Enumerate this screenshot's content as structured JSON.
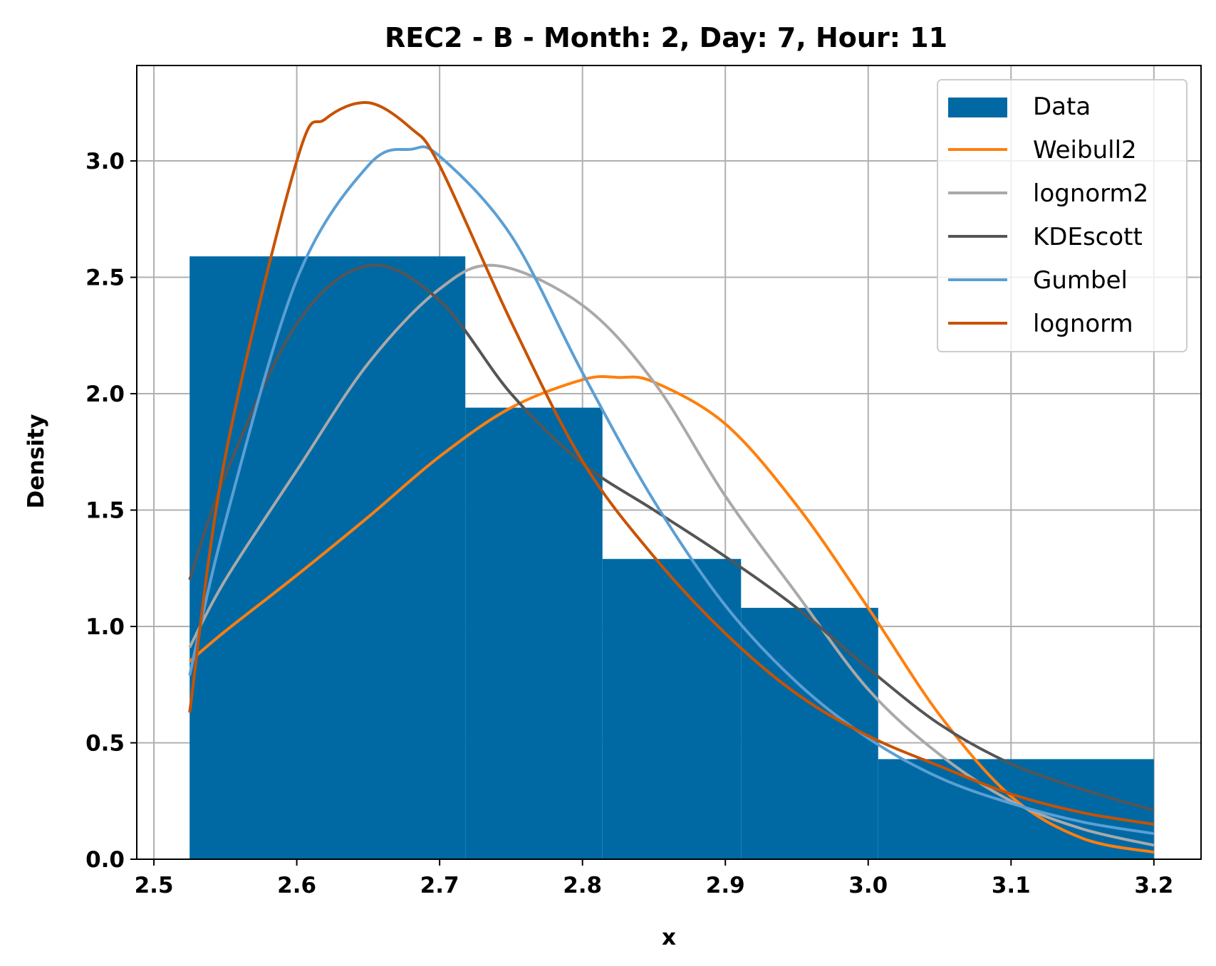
{
  "chart_data": {
    "type": "bar",
    "title": "REC2 - B - Month: 2, Day: 7, Hour: 11",
    "xlabel": "x",
    "ylabel": "Density",
    "xlim": [
      2.488,
      3.233
    ],
    "ylim": [
      0.0,
      3.41
    ],
    "xticks": [
      2.5,
      2.6,
      2.7,
      2.8,
      2.9,
      3.0,
      3.1,
      3.2
    ],
    "xtick_labels": [
      "2.5",
      "2.6",
      "2.7",
      "2.8",
      "2.9",
      "3.0",
      "3.1",
      "3.2"
    ],
    "yticks": [
      0.0,
      0.5,
      1.0,
      1.5,
      2.0,
      2.5,
      3.0
    ],
    "ytick_labels": [
      "0.0",
      "0.5",
      "1.0",
      "1.5",
      "2.0",
      "2.5",
      "3.0"
    ],
    "grid": true,
    "legend_position": "top-right",
    "histogram": {
      "name": "Data",
      "color": "#0069a4",
      "bin_edges": [
        2.525,
        2.718,
        2.814,
        2.911,
        3.007,
        3.2
      ],
      "values": [
        2.59,
        1.94,
        1.29,
        1.08,
        0.43
      ]
    },
    "series": [
      {
        "name": "Weibull2",
        "color": "#ff7f0e",
        "x": [
          2.525,
          2.55,
          2.6,
          2.65,
          2.7,
          2.75,
          2.8,
          2.825,
          2.85,
          2.9,
          2.95,
          3.0,
          3.05,
          3.1,
          3.15,
          3.2
        ],
        "y": [
          0.85,
          0.98,
          1.22,
          1.47,
          1.73,
          1.94,
          2.06,
          2.07,
          2.05,
          1.87,
          1.52,
          1.08,
          0.62,
          0.27,
          0.09,
          0.03
        ]
      },
      {
        "name": "lognorm2",
        "color": "#a9a9a9",
        "x": [
          2.525,
          2.55,
          2.6,
          2.65,
          2.7,
          2.74,
          2.8,
          2.85,
          2.9,
          2.95,
          3.0,
          3.05,
          3.1,
          3.15,
          3.2
        ],
        "y": [
          0.91,
          1.2,
          1.67,
          2.13,
          2.45,
          2.55,
          2.38,
          2.05,
          1.56,
          1.14,
          0.73,
          0.45,
          0.25,
          0.13,
          0.06
        ]
      },
      {
        "name": "KDEscott",
        "color": "#555555",
        "x": [
          2.525,
          2.55,
          2.6,
          2.65,
          2.7,
          2.75,
          2.8,
          2.85,
          2.9,
          2.95,
          3.0,
          3.05,
          3.1,
          3.15,
          3.2
        ],
        "y": [
          1.2,
          1.65,
          2.3,
          2.55,
          2.4,
          2.0,
          1.7,
          1.5,
          1.3,
          1.08,
          0.82,
          0.58,
          0.41,
          0.3,
          0.21
        ]
      },
      {
        "name": "Gumbel",
        "color": "#5b9fd4",
        "x": [
          2.525,
          2.55,
          2.6,
          2.65,
          2.68,
          2.7,
          2.75,
          2.8,
          2.85,
          2.9,
          2.95,
          3.0,
          3.05,
          3.1,
          3.15,
          3.2
        ],
        "y": [
          0.79,
          1.45,
          2.49,
          2.98,
          3.05,
          3.02,
          2.68,
          2.09,
          1.54,
          1.09,
          0.76,
          0.52,
          0.35,
          0.24,
          0.16,
          0.11
        ]
      },
      {
        "name": "lognorm",
        "color": "#c85200",
        "x": [
          2.525,
          2.55,
          2.6,
          2.62,
          2.65,
          2.68,
          2.7,
          2.75,
          2.8,
          2.85,
          2.9,
          2.95,
          3.0,
          3.05,
          3.1,
          3.15,
          3.2
        ],
        "y": [
          0.63,
          1.73,
          3.0,
          3.18,
          3.25,
          3.14,
          2.98,
          2.31,
          1.71,
          1.3,
          0.97,
          0.71,
          0.53,
          0.4,
          0.28,
          0.2,
          0.15
        ]
      }
    ]
  }
}
